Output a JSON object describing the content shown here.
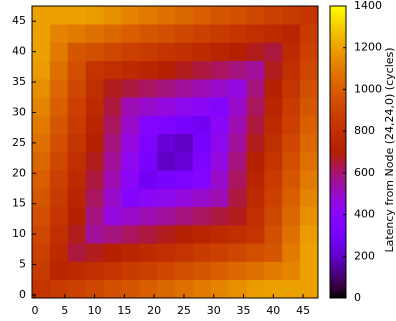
{
  "chart_data": {
    "type": "heatmap",
    "colorbar_label": "Latency from Node (24,24,0) (cycles)",
    "colormap": "gnuplot",
    "xbins": [
      -0.5,
      2.5,
      5.5,
      8.5,
      11.5,
      14.5,
      17.5,
      20.5,
      23.5,
      26.5,
      29.5,
      32.5,
      35.5,
      38.5,
      41.5,
      44.5,
      47.5
    ],
    "ybins": [
      -0.5,
      2.5,
      5.5,
      8.5,
      11.5,
      14.5,
      17.5,
      20.5,
      23.5,
      26.5,
      29.5,
      32.5,
      35.5,
      38.5,
      41.5,
      44.5,
      47.5
    ],
    "values": [
      [
        825,
        855,
        885,
        915,
        945,
        975,
        1005,
        1035,
        1065,
        1095,
        1125,
        1155,
        1185,
        1200,
        1200,
        1200
      ],
      [
        855,
        735,
        765,
        795,
        825,
        855,
        885,
        915,
        945,
        975,
        1005,
        1035,
        1065,
        1095,
        1125,
        1200
      ],
      [
        885,
        765,
        645,
        675,
        705,
        735,
        765,
        795,
        825,
        855,
        885,
        915,
        945,
        975,
        1095,
        1200
      ],
      [
        915,
        795,
        675,
        555,
        585,
        615,
        645,
        675,
        705,
        735,
        765,
        795,
        825,
        945,
        1065,
        1185
      ],
      [
        945,
        825,
        705,
        585,
        465,
        495,
        525,
        555,
        585,
        615,
        645,
        675,
        795,
        915,
        1035,
        1155
      ],
      [
        975,
        855,
        735,
        615,
        495,
        375,
        405,
        435,
        465,
        495,
        525,
        645,
        765,
        885,
        1005,
        1125
      ],
      [
        1005,
        885,
        765,
        645,
        525,
        405,
        285,
        315,
        345,
        375,
        495,
        615,
        735,
        855,
        975,
        1095
      ],
      [
        1035,
        915,
        795,
        675,
        555,
        435,
        315,
        195,
        225,
        345,
        465,
        585,
        705,
        825,
        945,
        1065
      ],
      [
        1065,
        945,
        825,
        705,
        585,
        465,
        345,
        225,
        195,
        315,
        435,
        555,
        675,
        795,
        915,
        1035
      ],
      [
        1095,
        975,
        855,
        735,
        615,
        495,
        375,
        345,
        315,
        285,
        405,
        525,
        645,
        765,
        885,
        1005
      ],
      [
        1125,
        1005,
        885,
        765,
        645,
        525,
        495,
        465,
        435,
        405,
        375,
        495,
        615,
        735,
        855,
        975
      ],
      [
        1155,
        1035,
        915,
        795,
        675,
        645,
        615,
        585,
        555,
        525,
        495,
        465,
        585,
        705,
        825,
        945
      ],
      [
        1185,
        1065,
        945,
        825,
        795,
        765,
        735,
        705,
        675,
        645,
        615,
        585,
        555,
        675,
        795,
        915
      ],
      [
        1200,
        1095,
        975,
        945,
        915,
        885,
        855,
        825,
        795,
        765,
        735,
        705,
        675,
        645,
        765,
        885
      ],
      [
        1200,
        1125,
        1095,
        1065,
        1035,
        1005,
        975,
        945,
        915,
        885,
        855,
        825,
        795,
        765,
        735,
        855
      ],
      [
        1200,
        1200,
        1200,
        1185,
        1155,
        1125,
        1095,
        1065,
        1035,
        1005,
        975,
        945,
        915,
        885,
        855,
        825
      ]
    ],
    "xlim": [
      -0.5,
      47.5
    ],
    "ylim": [
      -0.5,
      47.5
    ],
    "xticks": [
      0,
      5,
      10,
      15,
      20,
      25,
      30,
      35,
      40,
      45
    ],
    "yticks": [
      0,
      5,
      10,
      15,
      20,
      25,
      30,
      35,
      40,
      45
    ],
    "zlim": [
      0,
      1400
    ],
    "zticks": [
      0,
      200,
      400,
      600,
      800,
      1000,
      1200,
      1400
    ]
  }
}
